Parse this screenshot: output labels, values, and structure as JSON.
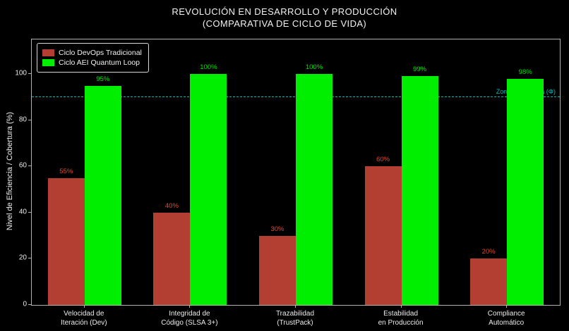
{
  "title": {
    "line1": "REVOLUCIÓN EN DESARROLLO Y PRODUCCIÓN",
    "line2": "(COMPARATIVA DE CICLO DE VIDA)"
  },
  "chart_data": {
    "type": "bar",
    "title": "REVOLUCIÓN EN DESARROLLO Y PRODUCCIÓN (COMPARATIVA DE CICLO DE VIDA)",
    "xlabel": "",
    "ylabel": "Nivel de Eficiencia / Cobertura (%)",
    "categories": [
      "Velocidad de\nIteración (Dev)",
      "Integridad de\nCódigo (SLSA 3+)",
      "Trazabilidad\n(TrustPack)",
      "Estabilidad\nen Producción",
      "Compliance\nAutomático"
    ],
    "series": [
      {
        "name": "Ciclo DevOps Tradicional",
        "values": [
          55,
          40,
          30,
          60,
          20
        ],
        "color": "#b33f33",
        "label_color": "#e04a2f"
      },
      {
        "name": "Ciclo AEI Quantum Loop",
        "values": [
          95,
          100,
          100,
          99,
          98
        ],
        "color": "#00ee00",
        "label_color": "#00e500"
      }
    ],
    "value_suffix": "%",
    "yticks": [
      0,
      20,
      40,
      60,
      80,
      100
    ],
    "ylim": [
      0,
      115
    ],
    "grid": false,
    "legend_position": "upper-left",
    "reference_line": {
      "value": 90,
      "label": "Zona Superfluida (Φ)",
      "color": "#00bcbc"
    }
  }
}
